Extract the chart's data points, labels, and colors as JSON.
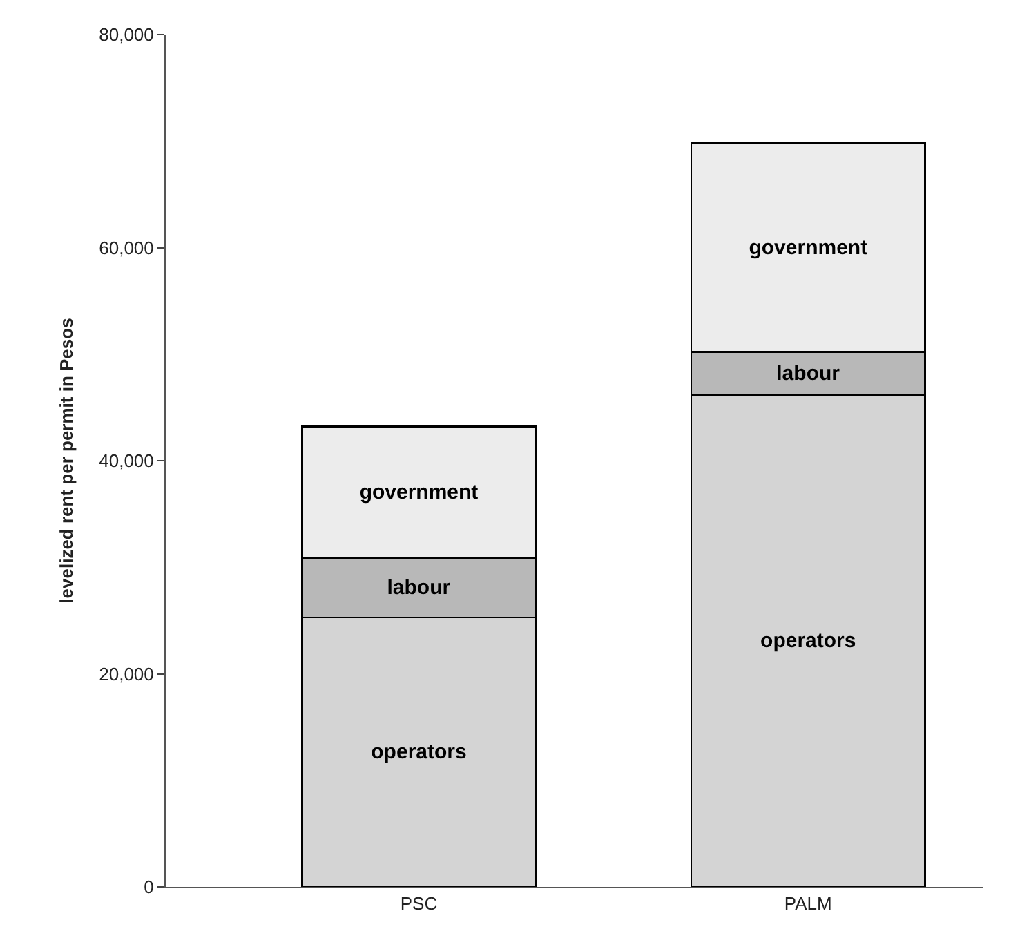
{
  "chart_data": {
    "type": "bar",
    "stacked": true,
    "ylabel": "levelized rent per permit in Pesos",
    "categories": [
      "PSC",
      "PALM"
    ],
    "series": [
      {
        "name": "operators",
        "color": "#d4d4d4",
        "values": [
          25300,
          46200
        ]
      },
      {
        "name": "labour",
        "color": "#b8b8b8",
        "values": [
          5600,
          4000
        ]
      },
      {
        "name": "government",
        "color": "#ececec",
        "values": [
          12300,
          19600
        ]
      }
    ],
    "ylim": [
      0,
      80000
    ],
    "yticks": [
      {
        "value": 0,
        "label": "0"
      },
      {
        "value": 20000,
        "label": "20,000"
      },
      {
        "value": 40000,
        "label": "40,000"
      },
      {
        "value": 60000,
        "label": "60,000"
      },
      {
        "value": 80000,
        "label": "80,000"
      }
    ]
  }
}
